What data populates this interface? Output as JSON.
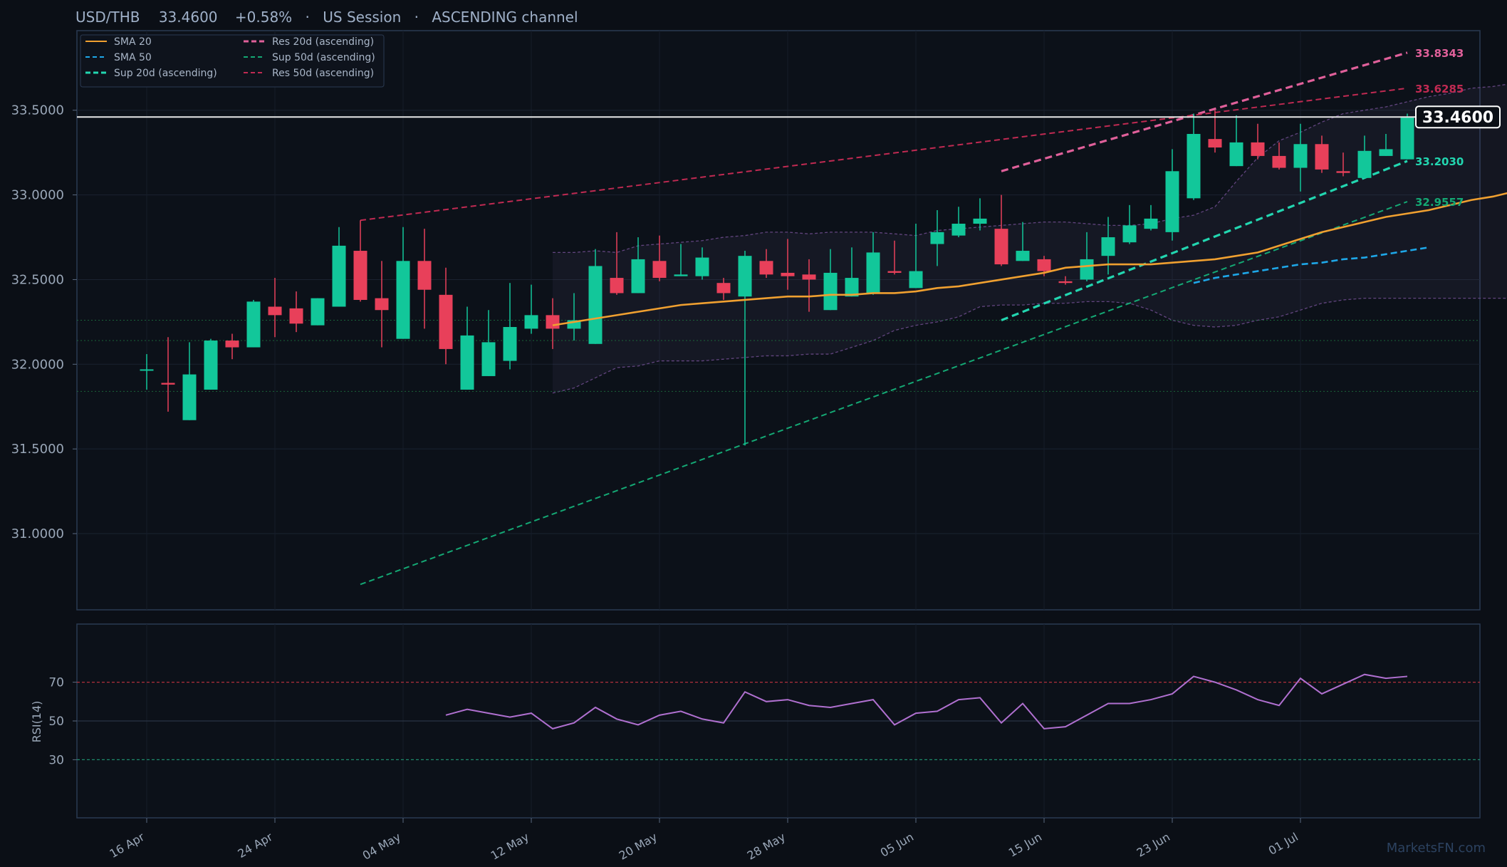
{
  "header": {
    "pair": "USD/THB",
    "price": "33.4600",
    "change": "+0.58%",
    "session": "US Session",
    "pattern": "ASCENDING channel",
    "sep": "·"
  },
  "watermark": "MarketsFN.com",
  "colors": {
    "background": "#0b0f16",
    "panel_border": "#2a3a52",
    "bull": "#12c79a",
    "bear": "#e8405a",
    "sma20": "#f0a030",
    "sma50": "#1ea7e8",
    "sup20": "#22d6b0",
    "res20": "#e0609a",
    "sup50": "#14a874",
    "res50": "#c02a52",
    "rsi": "#b070d0",
    "band": "#6a4a8a",
    "price_line": "#e8e8e8"
  },
  "chart_data": [
    {
      "type": "candlestick",
      "title": "USD/THB   33.4600   +0.58%  ·  US Session  ·  ASCENDING channel",
      "xlabel": "",
      "ylabel": "",
      "ylim": [
        30.55,
        33.97
      ],
      "yticks": [
        "31.0000",
        "31.5000",
        "32.0000",
        "32.5000",
        "33.0000",
        "33.5000"
      ],
      "xticks": [
        {
          "label": "16 Apr",
          "index": 0
        },
        {
          "label": "24 Apr",
          "index": 6
        },
        {
          "label": "04 May",
          "index": 12
        },
        {
          "label": "12 May",
          "index": 18
        },
        {
          "label": "20 May",
          "index": 24
        },
        {
          "label": "28 May",
          "index": 30
        },
        {
          "label": "05 Jun",
          "index": 36
        },
        {
          "label": "15 Jun",
          "index": 42
        },
        {
          "label": "23 Jun",
          "index": 48
        },
        {
          "label": "01 Jul",
          "index": 54
        }
      ],
      "grid": true,
      "legend_position": "top-left",
      "ohlc": [
        [
          31.97,
          32.06,
          31.85,
          31.97
        ],
        [
          31.89,
          32.16,
          31.72,
          31.88
        ],
        [
          31.67,
          32.13,
          31.67,
          31.94
        ],
        [
          31.85,
          32.15,
          31.85,
          32.14
        ],
        [
          32.14,
          32.18,
          32.03,
          32.1
        ],
        [
          32.1,
          32.38,
          32.1,
          32.37
        ],
        [
          32.34,
          32.51,
          32.16,
          32.29
        ],
        [
          32.33,
          32.43,
          32.19,
          32.24
        ],
        [
          32.23,
          32.39,
          32.23,
          32.39
        ],
        [
          32.34,
          32.81,
          32.34,
          32.7
        ],
        [
          32.67,
          32.85,
          32.37,
          32.38
        ],
        [
          32.39,
          32.61,
          32.1,
          32.32
        ],
        [
          32.15,
          32.81,
          32.15,
          32.61
        ],
        [
          32.61,
          32.8,
          32.21,
          32.44
        ],
        [
          32.41,
          32.57,
          32.0,
          32.09
        ],
        [
          31.85,
          32.34,
          31.85,
          32.17
        ],
        [
          31.93,
          32.32,
          31.93,
          32.13
        ],
        [
          32.02,
          32.48,
          31.97,
          32.22
        ],
        [
          32.21,
          32.47,
          32.18,
          32.29
        ],
        [
          32.29,
          32.39,
          32.09,
          32.21
        ],
        [
          32.21,
          32.42,
          32.14,
          32.26
        ],
        [
          32.12,
          32.68,
          32.12,
          32.58
        ],
        [
          32.51,
          32.78,
          32.41,
          32.42
        ],
        [
          32.42,
          32.75,
          32.42,
          32.62
        ],
        [
          32.61,
          32.76,
          32.49,
          32.51
        ],
        [
          32.52,
          32.71,
          32.52,
          32.53
        ],
        [
          32.52,
          32.69,
          32.5,
          32.63
        ],
        [
          32.48,
          32.51,
          32.38,
          32.42
        ],
        [
          32.4,
          32.67,
          31.52,
          32.64
        ],
        [
          32.61,
          32.68,
          32.51,
          32.53
        ],
        [
          32.54,
          32.74,
          32.44,
          32.52
        ],
        [
          32.53,
          32.62,
          32.31,
          32.5
        ],
        [
          32.32,
          32.68,
          32.32,
          32.54
        ],
        [
          32.4,
          32.69,
          32.4,
          32.51
        ],
        [
          32.42,
          32.78,
          32.41,
          32.66
        ],
        [
          32.55,
          32.73,
          32.53,
          32.54
        ],
        [
          32.45,
          32.83,
          32.45,
          32.55
        ],
        [
          32.71,
          32.91,
          32.58,
          32.78
        ],
        [
          32.76,
          32.93,
          32.75,
          32.83
        ],
        [
          32.83,
          32.98,
          32.79,
          32.86
        ],
        [
          32.8,
          33.0,
          32.58,
          32.59
        ],
        [
          32.61,
          32.84,
          32.61,
          32.67
        ],
        [
          32.62,
          32.64,
          32.52,
          32.55
        ],
        [
          32.49,
          32.52,
          32.47,
          32.48
        ],
        [
          32.5,
          32.78,
          32.49,
          32.62
        ],
        [
          32.64,
          32.87,
          32.53,
          32.75
        ],
        [
          32.72,
          32.94,
          32.71,
          32.82
        ],
        [
          32.8,
          32.94,
          32.79,
          32.86
        ],
        [
          32.78,
          33.27,
          32.73,
          33.14
        ],
        [
          32.98,
          33.48,
          32.97,
          33.36
        ],
        [
          33.33,
          33.5,
          33.25,
          33.28
        ],
        [
          33.17,
          33.47,
          33.17,
          33.31
        ],
        [
          33.31,
          33.42,
          33.21,
          33.23
        ],
        [
          33.23,
          33.31,
          33.15,
          33.16
        ],
        [
          33.16,
          33.42,
          33.02,
          33.3
        ],
        [
          33.3,
          33.35,
          33.13,
          33.15
        ],
        [
          33.14,
          33.25,
          33.11,
          33.13
        ],
        [
          33.1,
          33.35,
          33.1,
          33.26
        ],
        [
          33.23,
          33.36,
          33.23,
          33.27
        ],
        [
          33.21,
          33.48,
          33.21,
          33.46
        ]
      ],
      "sma20": {
        "start": 19,
        "values": [
          32.23,
          32.25,
          32.27,
          32.29,
          32.31,
          32.33,
          32.35,
          32.36,
          32.37,
          32.38,
          32.39,
          32.4,
          32.4,
          32.41,
          32.41,
          32.42,
          32.42,
          32.43,
          32.45,
          32.46,
          32.48,
          32.5,
          32.52,
          32.54,
          32.57,
          32.58,
          32.59,
          32.59,
          32.59,
          32.6,
          32.61,
          32.62,
          32.64,
          32.66,
          32.7,
          32.74,
          32.78,
          32.81,
          32.84,
          32.87,
          32.89,
          32.91,
          32.94,
          32.97,
          32.99,
          33.02
        ]
      },
      "sma50": {
        "start": 49,
        "values": [
          32.48,
          32.51,
          32.53,
          32.55,
          32.57,
          32.59,
          32.6,
          32.62,
          32.63,
          32.65,
          32.67,
          32.69
        ]
      },
      "bands": {
        "start": 19,
        "upper": [
          32.66,
          32.66,
          32.67,
          32.66,
          32.7,
          32.71,
          32.72,
          32.73,
          32.75,
          32.76,
          32.78,
          32.78,
          32.77,
          32.78,
          32.78,
          32.78,
          32.77,
          32.76,
          32.79,
          32.8,
          32.81,
          32.82,
          32.83,
          32.84,
          32.84,
          32.83,
          32.82,
          32.82,
          32.83,
          32.86,
          32.88,
          32.93,
          33.08,
          33.22,
          33.32,
          33.37,
          33.43,
          33.48,
          33.5,
          33.52,
          33.55,
          33.58,
          33.6,
          33.63,
          33.64,
          33.66
        ],
        "lower": [
          31.83,
          31.86,
          31.92,
          31.98,
          31.99,
          32.02,
          32.02,
          32.02,
          32.03,
          32.04,
          32.05,
          32.05,
          32.06,
          32.06,
          32.1,
          32.14,
          32.2,
          32.23,
          32.25,
          32.28,
          32.34,
          32.35,
          32.35,
          32.36,
          32.36,
          32.37,
          32.37,
          32.36,
          32.32,
          32.26,
          32.23,
          32.22,
          32.23,
          32.26,
          32.28,
          32.32,
          32.36,
          32.38,
          32.39,
          32.39,
          32.39,
          32.39,
          32.39,
          32.39,
          32.39,
          32.39
        ]
      },
      "trendlines": [
        {
          "name": "Sup 20d (ascending)",
          "from": [
            40,
            32.26
          ],
          "to": [
            59,
            33.2
          ],
          "label": "33.2030"
        },
        {
          "name": "Res 20d (ascending)",
          "from": [
            40,
            33.14
          ],
          "to": [
            59,
            33.84
          ],
          "label": "33.8343"
        },
        {
          "name": "Sup 50d (ascending)",
          "from": [
            10,
            30.7
          ],
          "to": [
            59,
            32.96
          ],
          "label": "32.9557"
        },
        {
          "name": "Res 50d (ascending)",
          "from": [
            10,
            32.85
          ],
          "to": [
            59,
            33.63
          ],
          "label": "33.6285"
        }
      ],
      "horizontal_levels": [
        32.26,
        32.14,
        31.84
      ],
      "last_price": 33.46,
      "last_price_label": "33.4600",
      "legend": [
        {
          "name": "SMA 20",
          "color": "#f0a030",
          "dash": "solid"
        },
        {
          "name": "SMA 50",
          "color": "#1ea7e8",
          "dash": "dash"
        },
        {
          "name": "Sup 20d (ascending)",
          "color": "#22d6b0",
          "dash": "dash-bold"
        },
        {
          "name": "Res 20d (ascending)",
          "color": "#e0609a",
          "dash": "dash-bold"
        },
        {
          "name": "Sup 50d (ascending)",
          "color": "#14a874",
          "dash": "dash"
        },
        {
          "name": "Res 50d (ascending)",
          "color": "#c02a52",
          "dash": "dash"
        }
      ]
    },
    {
      "type": "line",
      "ylabel": "RSI(14)",
      "ylim": [
        0,
        100
      ],
      "yticks": [
        "30",
        "50",
        "70"
      ],
      "levels": [
        70,
        50,
        30
      ],
      "series": [
        {
          "name": "",
          "start": 14,
          "values": [
            53,
            56,
            54,
            52,
            54,
            46,
            49,
            57,
            51,
            48,
            53,
            55,
            51,
            49,
            65,
            60,
            61,
            58,
            57,
            59,
            61,
            48,
            54,
            55,
            61,
            62,
            49,
            59,
            46,
            47,
            53,
            59,
            59,
            61,
            64,
            73,
            70,
            66,
            61,
            58,
            72,
            64,
            69,
            74,
            72,
            73
          ]
        }
      ]
    }
  ]
}
